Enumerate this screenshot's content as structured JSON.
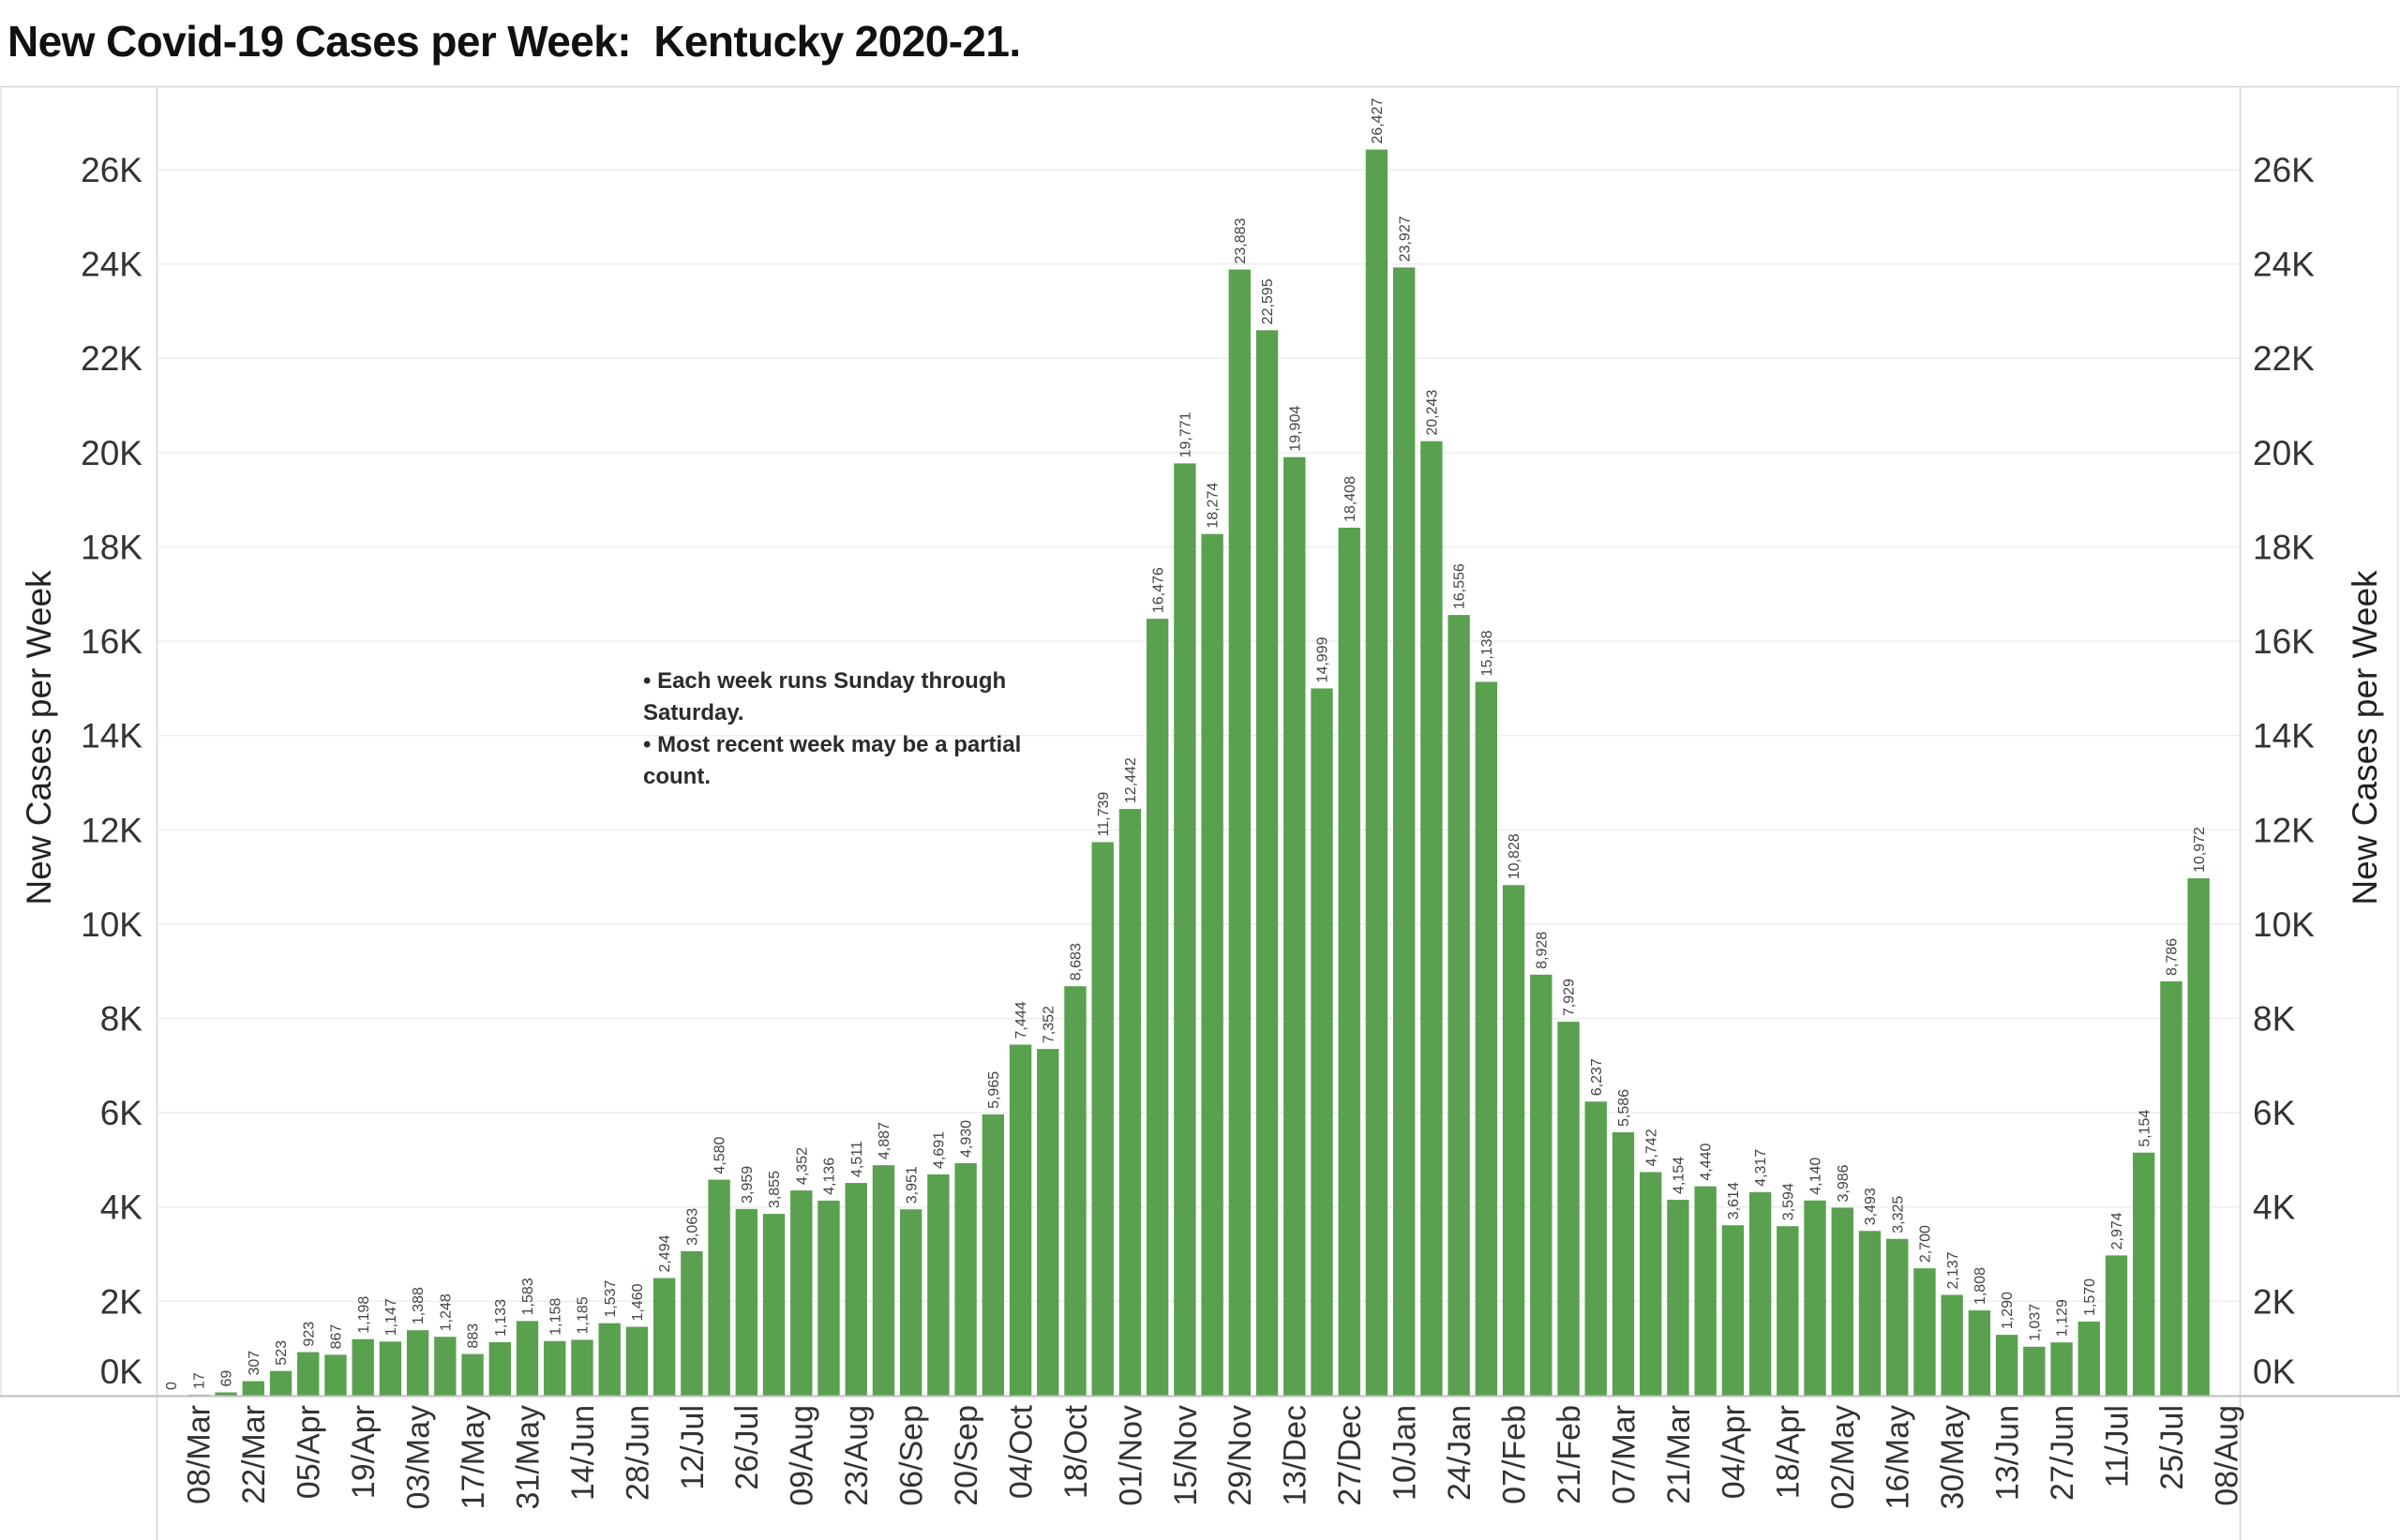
{
  "chart_data": {
    "type": "bar",
    "title": "New Covid-19 Cases per Week:  Kentucky 2020-21.",
    "ylabel": "New Cases per Week",
    "categories": [
      "",
      "08/Mar",
      "",
      "22/Mar",
      "",
      "05/Apr",
      "",
      "19/Apr",
      "",
      "03/May",
      "",
      "17/May",
      "",
      "31/May",
      "",
      "14/Jun",
      "",
      "28/Jun",
      "",
      "12/Jul",
      "",
      "26/Jul",
      "",
      "09/Aug",
      "",
      "23/Aug",
      "",
      "06/Sep",
      "",
      "20/Sep",
      "",
      "04/Oct",
      "",
      "18/Oct",
      "",
      "01/Nov",
      "",
      "15/Nov",
      "",
      "29/Nov",
      "",
      "13/Dec",
      "",
      "27/Dec",
      "",
      "10/Jan",
      "",
      "24/Jan",
      "",
      "07/Feb",
      "",
      "21/Feb",
      "",
      "07/Mar",
      "",
      "21/Mar",
      "",
      "04/Apr",
      "",
      "18/Apr",
      "",
      "02/May",
      "",
      "16/May",
      "",
      "30/May",
      "",
      "13/Jun",
      "",
      "27/Jun",
      "",
      "11/Jul",
      "",
      "25/Jul",
      "",
      "08/Aug"
    ],
    "values": [
      0,
      17,
      69,
      307,
      523,
      923,
      867,
      1198,
      1147,
      1388,
      1248,
      883,
      1133,
      1583,
      1158,
      1185,
      1537,
      1460,
      2494,
      3063,
      4580,
      3959,
      3855,
      4352,
      4136,
      4511,
      4887,
      3951,
      4691,
      4930,
      5965,
      7444,
      7352,
      8683,
      11739,
      12442,
      16476,
      19771,
      18274,
      23883,
      22595,
      19904,
      14999,
      18408,
      26427,
      23927,
      20243,
      16556,
      15138,
      10828,
      8928,
      7929,
      6237,
      5586,
      4742,
      4154,
      4440,
      3614,
      4317,
      3594,
      4140,
      3986,
      3493,
      3325,
      2700,
      2137,
      1808,
      1290,
      1037,
      1129,
      1570,
      2974,
      5154,
      8786,
      10972,
      null
    ],
    "ylim": [
      0,
      27750
    ],
    "y_ticks": [
      {
        "value": 0,
        "label": "0K"
      },
      {
        "value": 2000,
        "label": "2K"
      },
      {
        "value": 4000,
        "label": "4K"
      },
      {
        "value": 6000,
        "label": "6K"
      },
      {
        "value": 8000,
        "label": "8K"
      },
      {
        "value": 10000,
        "label": "10K"
      },
      {
        "value": 12000,
        "label": "12K"
      },
      {
        "value": 14000,
        "label": "14K"
      },
      {
        "value": 16000,
        "label": "16K"
      },
      {
        "value": 18000,
        "label": "18K"
      },
      {
        "value": 20000,
        "label": "20K"
      },
      {
        "value": 22000,
        "label": "22K"
      },
      {
        "value": 24000,
        "label": "24K"
      },
      {
        "value": 26000,
        "label": "26K"
      }
    ],
    "grid": true,
    "color": "#59A14F",
    "annotations": [
      "• Each week runs Sunday through Saturday.",
      "• Most recent week may be a partial count."
    ]
  }
}
